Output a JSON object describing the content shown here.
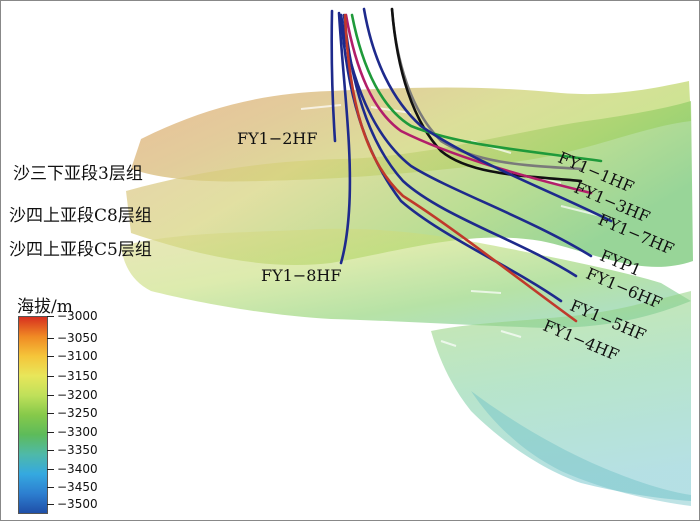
{
  "layers": [
    "沙三下亚段3层组",
    "沙四上亚段C8层组",
    "沙四上亚段C5层组"
  ],
  "wells": {
    "fy1_2hf": "FY1−2HF",
    "fy1_8hf": "FY1−8HF",
    "fy1_1hf": "FY1−1HF",
    "fy1_3hf": "FY1−3HF",
    "fy1_7hf": "FY1−7HF",
    "fyp1": "FYP1",
    "fy1_6hf": "FY1−6HF",
    "fy1_5hf": "FY1−5HF",
    "fy1_4hf": "FY1−4HF"
  },
  "legend": {
    "title": "海拔/m",
    "ticks": [
      "−3000",
      "−3050",
      "−3100",
      "−3150",
      "−3200",
      "−3250",
      "−3300",
      "−3350",
      "−3400",
      "−3450",
      "−3500"
    ],
    "colors": [
      "#d7301f",
      "#f08a24",
      "#f5c53a",
      "#e8e65a",
      "#bfe05a",
      "#86c94a",
      "#5dbb5a",
      "#4fb9a8",
      "#35a9e0",
      "#2d7fd0",
      "#1f4fa8"
    ]
  }
}
